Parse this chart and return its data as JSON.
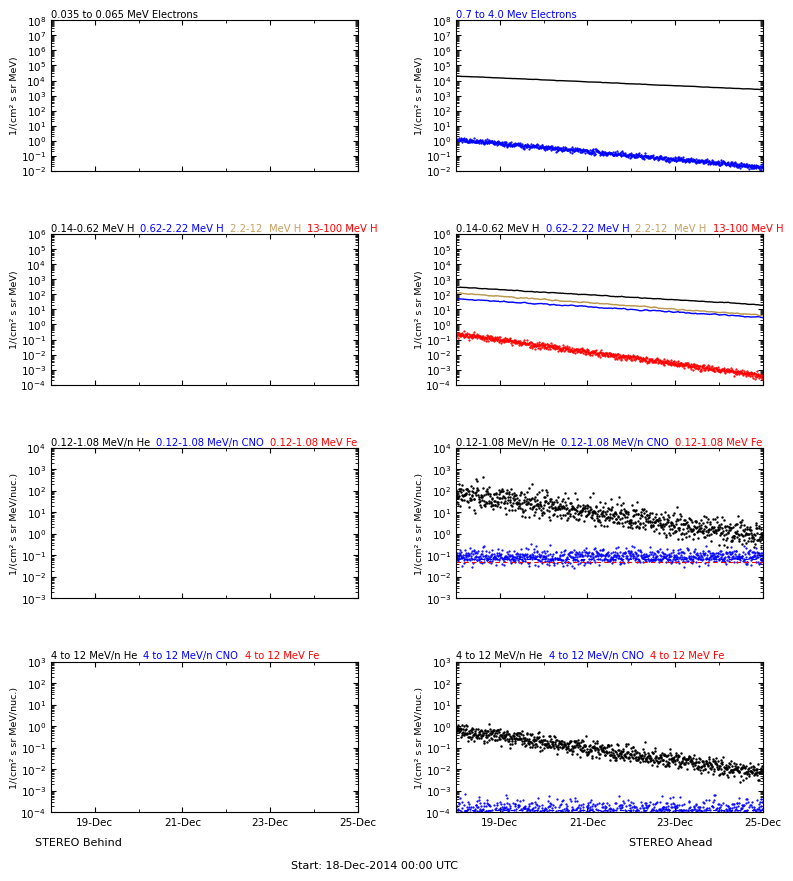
{
  "background_color": "#ffffff",
  "n_points": 800,
  "seed": 42,
  "xtick_labels": [
    "19-Dec",
    "21-Dec",
    "23-Dec",
    "25-Dec"
  ],
  "xtick_positions": [
    1,
    3,
    5,
    7
  ],
  "xlim": [
    0,
    7
  ],
  "stereo_behind": "STEREO Behind",
  "stereo_ahead": "STEREO Ahead",
  "xlabel_bottom": "Start: 18-Dec-2014 00:00 UTC",
  "panels": {
    "r0_left": {
      "ylim": [
        0.01,
        100000000.0
      ],
      "ylabel": "1/(cm² s sr MeV)",
      "empty": true
    },
    "r0_right": {
      "ylim": [
        0.01,
        100000000.0
      ],
      "ylabel": "1/(cm² s sr MeV)",
      "empty": false
    },
    "r1_left": {
      "ylim": [
        0.0001,
        1000000.0
      ],
      "ylabel": "1/(cm² s sr MeV)",
      "empty": true
    },
    "r1_right": {
      "ylim": [
        0.0001,
        1000000.0
      ],
      "ylabel": "1/(cm² s sr MeV)",
      "empty": false
    },
    "r2_left": {
      "ylim": [
        0.001,
        10000.0
      ],
      "ylabel": "1/(cm² s sr MeV/nuc.)",
      "empty": true
    },
    "r2_right": {
      "ylim": [
        0.001,
        10000.0
      ],
      "ylabel": "1/(cm² s sr MeV/nuc.)",
      "empty": false
    },
    "r3_left": {
      "ylim": [
        0.0001,
        1000.0
      ],
      "ylabel": "1/(cm² s sr MeV/nuc.)",
      "empty": true
    },
    "r3_right": {
      "ylim": [
        0.0001,
        1000.0
      ],
      "ylabel": "1/(cm² s sr MeV/nuc.)",
      "empty": false
    }
  },
  "titles": {
    "r0_left": [
      {
        "text": "0.035 to 0.065 MeV Electrons",
        "color": "black"
      }
    ],
    "r0_right": [
      {
        "text": "0.7 to 4.0 Mev Electrons",
        "color": "blue"
      }
    ],
    "r1_left": [
      {
        "text": "0.14-0.62 MeV H  ",
        "color": "black"
      },
      {
        "text": "0.62-2.22 MeV H  ",
        "color": "blue"
      },
      {
        "text": "2.2-12  ",
        "color": "#c8a060"
      },
      {
        "text": "MeV H  ",
        "color": "#c8a060"
      },
      {
        "text": "13-100 MeV H",
        "color": "red"
      }
    ],
    "r1_right": [
      {
        "text": "0.14-0.62 MeV H  ",
        "color": "black"
      },
      {
        "text": "0.62-2.22 MeV H  ",
        "color": "blue"
      },
      {
        "text": "2.2-12  ",
        "color": "#c8a060"
      },
      {
        "text": "MeV H  ",
        "color": "#c8a060"
      },
      {
        "text": "13-100 MeV H",
        "color": "red"
      }
    ],
    "r2_left": [
      {
        "text": "0.12-1.08 MeV/n He  ",
        "color": "black"
      },
      {
        "text": "0.12-1.08 MeV/n CNO  ",
        "color": "blue"
      },
      {
        "text": "0.12-1.08 MeV Fe",
        "color": "red"
      }
    ],
    "r2_right": [
      {
        "text": "0.12-1.08 MeV/n He  ",
        "color": "black"
      },
      {
        "text": "0.12-1.08 MeV/n CNO  ",
        "color": "blue"
      },
      {
        "text": "0.12-1.08 MeV Fe",
        "color": "red"
      }
    ],
    "r3_left": [
      {
        "text": "4 to 12 MeV/n He  ",
        "color": "black"
      },
      {
        "text": "4 to 12 MeV/n CNO  ",
        "color": "blue"
      },
      {
        "text": "4 to 12 MeV Fe",
        "color": "red"
      }
    ],
    "r3_right": [
      {
        "text": "4 to 12 MeV/n He  ",
        "color": "black"
      },
      {
        "text": "4 to 12 MeV/n CNO  ",
        "color": "blue"
      },
      {
        "text": "4 to 12 MeV Fe",
        "color": "red"
      }
    ]
  }
}
